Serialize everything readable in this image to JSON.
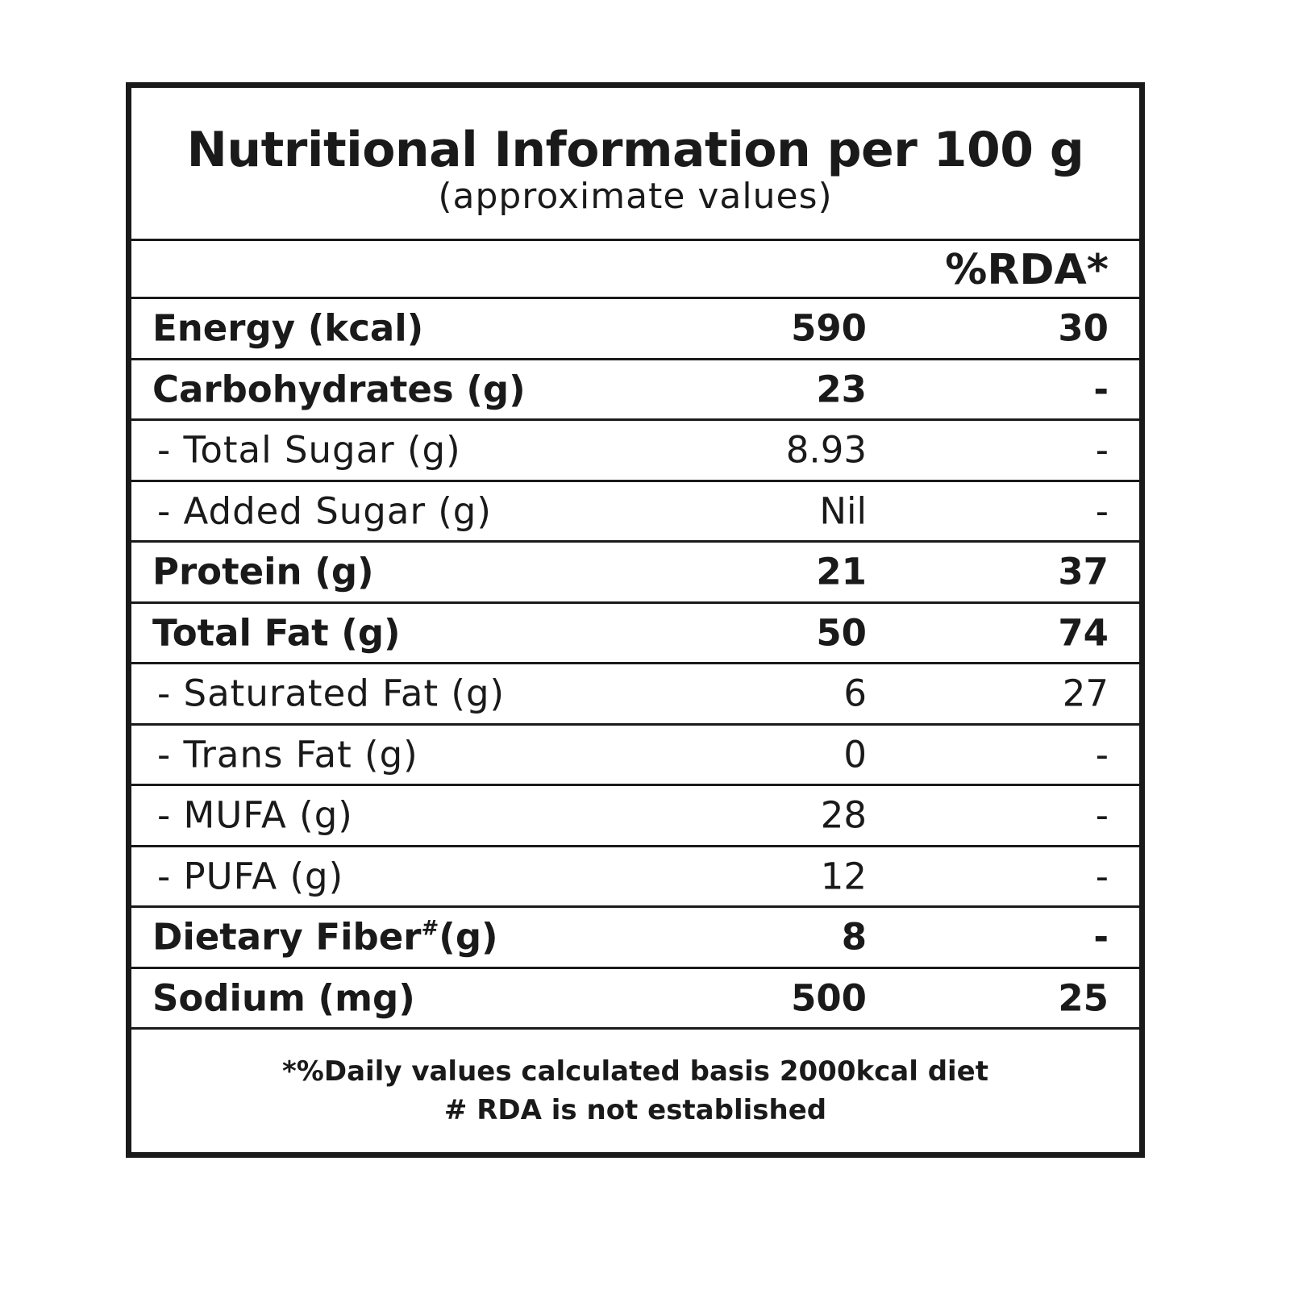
{
  "title": "Nutritional Information per 100 g",
  "subtitle": "(approximate values)",
  "rda_header": "%RDA*",
  "rows": [
    {
      "label": "Energy (kcal)",
      "amount": "590",
      "rda": "30"
    },
    {
      "label": "Carbohydrates (g)",
      "amount": "23",
      "rda": "-"
    },
    {
      "label": "- Total Sugar (g)",
      "amount": "8.93",
      "rda": "-"
    },
    {
      "label": "- Added Sugar (g)",
      "amount": "Nil",
      "rda": "-"
    },
    {
      "label": "Protein (g)",
      "amount": "21",
      "rda": "37"
    },
    {
      "label": "Total Fat (g)",
      "amount": "50",
      "rda": "74"
    },
    {
      "label": "- Saturated Fat (g)",
      "amount": "6",
      "rda": "27"
    },
    {
      "label": "- Trans Fat (g)",
      "amount": "0",
      "rda": "-"
    },
    {
      "label": "- MUFA (g)",
      "amount": "28",
      "rda": "-"
    },
    {
      "label": "- PUFA (g)",
      "amount": "12",
      "rda": "-"
    },
    {
      "label_main": "Dietary Fiber",
      "label_sup": "#",
      "label_unit": "(g)",
      "amount": "8",
      "rda": "-"
    },
    {
      "label": "Sodium (mg)",
      "amount": "500",
      "rda": "25"
    }
  ],
  "footnotes": [
    "*%Daily values calculated basis 2000kcal diet",
    "# RDA is not established"
  ]
}
